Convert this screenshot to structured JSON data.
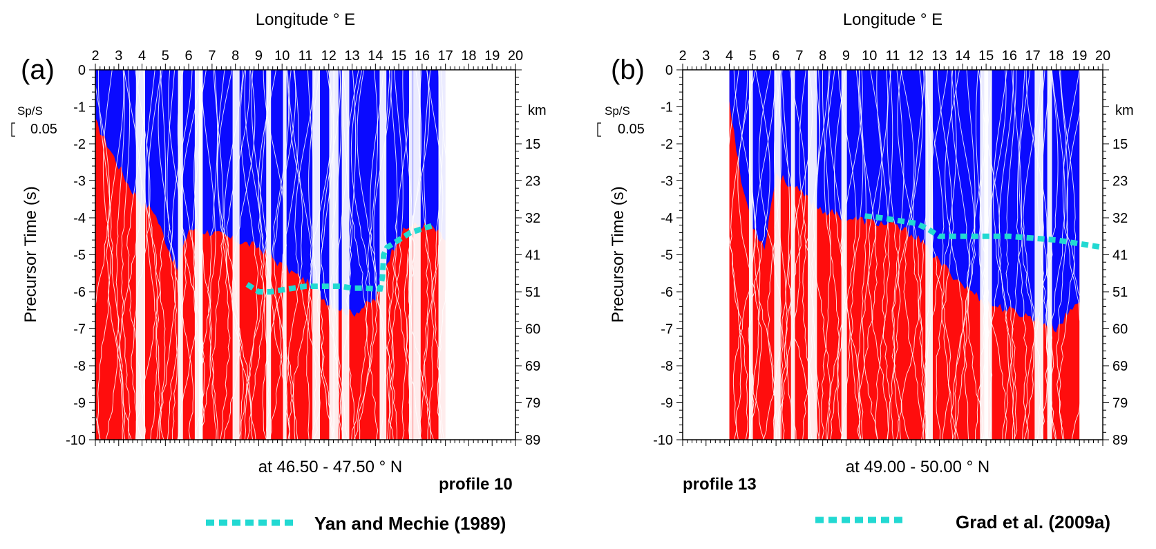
{
  "figure": {
    "legend_entries": [
      "Yan and Mechie (1989)",
      "Grad et al. (2009a)"
    ],
    "legend_color": "#22d9d2",
    "positive_color": "#ff0d0d",
    "negative_color": "#0a0aff"
  },
  "chart_data": [
    {
      "type": "area",
      "panel_label": "(a)",
      "title": "",
      "xlabel": "Longitude ° E",
      "ylabel": "Precursor Time (s)",
      "y2label": "km",
      "xlim": [
        2,
        20
      ],
      "ylim": [
        -10,
        0
      ],
      "xticks": [
        "2",
        "3",
        "4",
        "5",
        "6",
        "7",
        "8",
        "9",
        "10",
        "11",
        "12",
        "13",
        "14",
        "15",
        "16",
        "17",
        "18",
        "19",
        "20"
      ],
      "yticks": [
        "0",
        "-1",
        "-2",
        "-3",
        "-4",
        "-5",
        "-6",
        "-7",
        "-8",
        "-9",
        "-10"
      ],
      "depth_ticks": [
        {
          "t": -2,
          "km": "15"
        },
        {
          "t": -3,
          "km": "23"
        },
        {
          "t": -4,
          "km": "32"
        },
        {
          "t": -5,
          "km": "41"
        },
        {
          "t": -6,
          "km": "51"
        },
        {
          "t": -7,
          "km": "60"
        },
        {
          "t": -8,
          "km": "69"
        },
        {
          "t": -9,
          "km": "79"
        },
        {
          "t": -10,
          "km": "89"
        }
      ],
      "scale_label": "Sp/S",
      "scale_value": "0.05",
      "subtitle": "at 46.50 - 47.50 ° N",
      "profile_label": "profile 10",
      "reference_line": {
        "name": "Yan and Mechie (1989)",
        "lon": [
          8.5,
          9.0,
          9.5,
          10.0,
          10.5,
          11.0,
          11.5,
          12.0,
          12.5,
          13.0,
          13.5,
          14.0,
          14.2,
          14.3,
          14.35,
          14.5,
          15.0,
          15.5,
          16.0,
          16.5
        ],
        "time": [
          -5.8,
          -6.0,
          -6.0,
          -5.95,
          -5.9,
          -5.85,
          -5.85,
          -5.85,
          -5.85,
          -5.9,
          -5.9,
          -5.92,
          -5.92,
          -5.6,
          -5.0,
          -4.8,
          -4.6,
          -4.4,
          -4.3,
          -4.2
        ]
      },
      "blue_area_top": {
        "lon": [
          2.0,
          2.5,
          3.0,
          3.5,
          4.0,
          4.5,
          5.0,
          5.5,
          6.0,
          7.0,
          8.0,
          9.0,
          10.0,
          11.0,
          12.0,
          13.0,
          14.0,
          14.5,
          15.0,
          15.5,
          16.0,
          16.5,
          17.0
        ],
        "time": [
          -1.4,
          -2.0,
          -2.6,
          -3.2,
          -3.6,
          -3.8,
          -4.6,
          -5.4,
          -4.3,
          -4.4,
          -4.6,
          -4.8,
          -5.3,
          -5.7,
          -6.3,
          -6.6,
          -6.2,
          -5.2,
          -4.5,
          -4.2,
          -4.2,
          -4.3,
          -4.6
        ]
      }
    },
    {
      "type": "area",
      "panel_label": "(b)",
      "title": "",
      "xlabel": "Longitude ° E",
      "ylabel": "Precursor Time (s)",
      "y2label": "km",
      "xlim": [
        2,
        20
      ],
      "ylim": [
        -10,
        0
      ],
      "xticks": [
        "2",
        "3",
        "4",
        "5",
        "6",
        "7",
        "8",
        "9",
        "10",
        "11",
        "12",
        "13",
        "14",
        "15",
        "16",
        "17",
        "18",
        "19",
        "20"
      ],
      "yticks": [
        "0",
        "-1",
        "-2",
        "-3",
        "-4",
        "-5",
        "-6",
        "-7",
        "-8",
        "-9",
        "-10"
      ],
      "depth_ticks": [
        {
          "t": -2,
          "km": "15"
        },
        {
          "t": -3,
          "km": "23"
        },
        {
          "t": -4,
          "km": "32"
        },
        {
          "t": -5,
          "km": "41"
        },
        {
          "t": -6,
          "km": "51"
        },
        {
          "t": -7,
          "km": "60"
        },
        {
          "t": -8,
          "km": "69"
        },
        {
          "t": -9,
          "km": "79"
        },
        {
          "t": -10,
          "km": "89"
        }
      ],
      "scale_label": "Sp/S",
      "scale_value": "0.05",
      "subtitle": "at 49.00 - 50.00 ° N",
      "profile_label": "profile 13",
      "reference_line": {
        "name": "Grad et al. (2009a)",
        "lon": [
          9.8,
          10.5,
          11.0,
          11.5,
          12.0,
          12.5,
          13.0,
          13.5,
          14.0,
          15.0,
          16.0,
          17.0,
          18.0,
          19.0,
          20.0
        ],
        "time": [
          -3.95,
          -4.0,
          -4.05,
          -4.1,
          -4.15,
          -4.3,
          -4.5,
          -4.5,
          -4.5,
          -4.5,
          -4.5,
          -4.55,
          -4.6,
          -4.7,
          -4.8
        ]
      },
      "blue_area_top": {
        "lon": [
          4.0,
          4.5,
          5.0,
          5.5,
          6.0,
          7.0,
          8.0,
          9.0,
          10.0,
          11.0,
          12.0,
          13.0,
          14.0,
          15.0,
          16.0,
          17.0,
          18.0,
          18.5,
          19.0
        ],
        "time": [
          -0.8,
          -3.0,
          -4.2,
          -4.8,
          -2.8,
          -3.3,
          -3.8,
          -4.0,
          -4.1,
          -4.2,
          -4.5,
          -5.2,
          -5.8,
          -6.3,
          -6.5,
          -6.7,
          -7.0,
          -6.6,
          -6.2
        ]
      }
    }
  ]
}
